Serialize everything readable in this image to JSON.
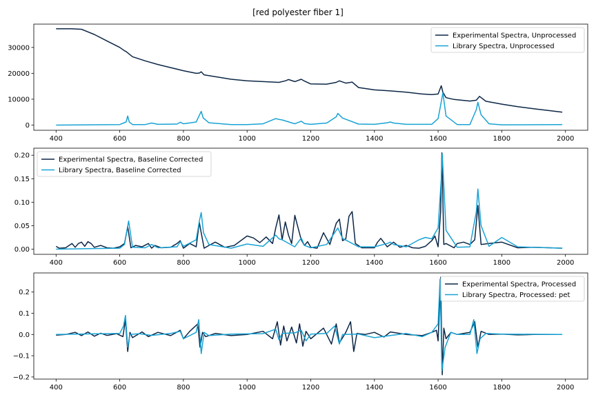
{
  "figure_title": "[red polyester fiber 1]",
  "colors": {
    "experimental": "#0b2545",
    "library": "#17a2d4"
  },
  "chart_data": [
    {
      "type": "line",
      "xlim": [
        330,
        2070
      ],
      "ylim": [
        -2000,
        39000
      ],
      "xticks": [
        400,
        600,
        800,
        1000,
        1200,
        1400,
        1600,
        1800,
        2000
      ],
      "yticks": [
        0,
        10000,
        20000,
        30000
      ],
      "ytick_labels": [
        "0",
        "10000",
        "20000",
        "30000"
      ],
      "legend_position": "upper-right",
      "series": [
        {
          "name": "Experimental Spectra, Unprocessed",
          "x": [
            400,
            450,
            480,
            520,
            560,
            600,
            615,
            620,
            640,
            680,
            720,
            760,
            800,
            840,
            850,
            856,
            865,
            900,
            950,
            1000,
            1050,
            1100,
            1120,
            1130,
            1150,
            1170,
            1180,
            1200,
            1250,
            1280,
            1290,
            1310,
            1330,
            1350,
            1400,
            1450,
            1500,
            1550,
            1580,
            1600,
            1610,
            1615,
            1625,
            1650,
            1700,
            1720,
            1730,
            1750,
            1800,
            1850,
            1900,
            1950,
            1990
          ],
          "y": [
            37200,
            37200,
            37000,
            35000,
            32500,
            30000,
            28700,
            28400,
            26400,
            24800,
            23400,
            22200,
            21000,
            20000,
            20100,
            20600,
            19400,
            18700,
            17700,
            17100,
            16800,
            16500,
            17100,
            17600,
            16800,
            17700,
            17000,
            15900,
            15800,
            16500,
            17100,
            16200,
            16600,
            14500,
            13600,
            13200,
            12700,
            12000,
            11800,
            12000,
            15200,
            12700,
            10600,
            9900,
            9300,
            9600,
            11100,
            9200,
            8100,
            7100,
            6300,
            5600,
            5000
          ]
        },
        {
          "name": "Library Spectra, Unprocessed",
          "x": [
            400,
            600,
            620,
            625,
            630,
            640,
            680,
            700,
            720,
            780,
            790,
            800,
            840,
            850,
            856,
            862,
            880,
            950,
            1000,
            1050,
            1090,
            1100,
            1110,
            1150,
            1170,
            1180,
            1200,
            1250,
            1280,
            1285,
            1300,
            1350,
            1400,
            1440,
            1450,
            1460,
            1500,
            1580,
            1600,
            1610,
            1615,
            1625,
            1660,
            1700,
            1720,
            1725,
            1735,
            1760,
            1800,
            1990
          ],
          "y": [
            0,
            200,
            1200,
            3500,
            1200,
            200,
            200,
            800,
            300,
            400,
            1100,
            500,
            1200,
            3800,
            5300,
            2800,
            900,
            200,
            200,
            500,
            2500,
            2200,
            2000,
            500,
            1500,
            600,
            300,
            800,
            3200,
            4500,
            2700,
            400,
            300,
            900,
            1200,
            800,
            300,
            300,
            2500,
            9000,
            12500,
            3500,
            200,
            200,
            6000,
            8800,
            4000,
            500,
            100,
            200
          ]
        }
      ]
    },
    {
      "type": "line",
      "xlim": [
        330,
        2070
      ],
      "ylim": [
        -0.011,
        0.215
      ],
      "xticks": [
        400,
        600,
        800,
        1000,
        1200,
        1400,
        1600,
        1800,
        2000
      ],
      "yticks": [
        0.0,
        0.05,
        0.1,
        0.15,
        0.2
      ],
      "ytick_labels": [
        "0.00",
        "0.05",
        "0.10",
        "0.15",
        "0.20"
      ],
      "legend_position": "upper-left",
      "series": [
        {
          "name": "Experimental Spectra, Baseline Corrected",
          "x": [
            400,
            410,
            430,
            450,
            460,
            470,
            480,
            490,
            500,
            510,
            520,
            540,
            560,
            580,
            600,
            615,
            625,
            635,
            650,
            670,
            690,
            700,
            710,
            730,
            760,
            780,
            790,
            800,
            820,
            840,
            850,
            856,
            865,
            880,
            900,
            930,
            960,
            1000,
            1020,
            1040,
            1060,
            1080,
            1090,
            1100,
            1110,
            1120,
            1130,
            1140,
            1150,
            1160,
            1170,
            1180,
            1190,
            1200,
            1220,
            1240,
            1260,
            1280,
            1290,
            1300,
            1310,
            1320,
            1330,
            1340,
            1360,
            1400,
            1410,
            1420,
            1440,
            1460,
            1480,
            1500,
            1520,
            1540,
            1560,
            1580,
            1590,
            1600,
            1608,
            1612,
            1618,
            1625,
            1650,
            1660,
            1680,
            1700,
            1715,
            1725,
            1735,
            1760,
            1800,
            1850,
            1900,
            1950,
            1990
          ],
          "y": [
            0.006,
            0.002,
            0.003,
            0.012,
            0.004,
            0.012,
            0.015,
            0.006,
            0.016,
            0.012,
            0.004,
            0.008,
            0.003,
            0.002,
            0.005,
            0.012,
            0.048,
            0.003,
            0.008,
            0.005,
            0.012,
            0.002,
            0.008,
            0.003,
            0.004,
            0.012,
            0.018,
            0.002,
            0.012,
            0.005,
            0.057,
            0.035,
            0.002,
            0.008,
            0.015,
            0.004,
            0.008,
            0.028,
            0.024,
            0.014,
            0.026,
            0.012,
            0.045,
            0.073,
            0.02,
            0.058,
            0.03,
            0.012,
            0.072,
            0.046,
            0.02,
            0.008,
            0.016,
            0.004,
            0.002,
            0.035,
            0.01,
            0.055,
            0.064,
            0.018,
            0.022,
            0.07,
            0.08,
            0.012,
            0.003,
            0.003,
            0.015,
            0.023,
            0.005,
            0.015,
            0.004,
            0.008,
            0.003,
            0.002,
            0.006,
            0.018,
            0.028,
            0.005,
            0.08,
            0.205,
            0.01,
            0.012,
            0.003,
            0.012,
            0.015,
            0.01,
            0.02,
            0.093,
            0.01,
            0.012,
            0.015,
            0.003,
            0.004,
            0.003,
            0.002
          ]
        },
        {
          "name": "Library Spectra, Baseline Corrected",
          "x": [
            400,
            600,
            615,
            620,
            628,
            640,
            680,
            700,
            720,
            780,
            790,
            800,
            840,
            850,
            856,
            863,
            880,
            950,
            1000,
            1050,
            1090,
            1100,
            1110,
            1150,
            1170,
            1180,
            1200,
            1250,
            1280,
            1285,
            1300,
            1350,
            1400,
            1440,
            1450,
            1460,
            1500,
            1540,
            1560,
            1580,
            1600,
            1610,
            1613,
            1625,
            1660,
            1700,
            1720,
            1725,
            1735,
            1760,
            1800,
            1850,
            1990
          ],
          "y": [
            0.0,
            0.002,
            0.01,
            0.03,
            0.06,
            0.004,
            0.003,
            0.01,
            0.003,
            0.005,
            0.016,
            0.006,
            0.02,
            0.06,
            0.078,
            0.035,
            0.01,
            0.002,
            0.011,
            0.006,
            0.03,
            0.022,
            0.02,
            0.005,
            0.024,
            0.008,
            0.003,
            0.01,
            0.04,
            0.045,
            0.023,
            0.005,
            0.005,
            0.012,
            0.015,
            0.01,
            0.005,
            0.02,
            0.025,
            0.022,
            0.045,
            0.15,
            0.203,
            0.04,
            0.004,
            0.005,
            0.08,
            0.128,
            0.05,
            0.006,
            0.025,
            0.005,
            0.002
          ]
        }
      ]
    },
    {
      "type": "line",
      "xlim": [
        330,
        2070
      ],
      "ylim": [
        -0.21,
        0.29
      ],
      "xticks": [
        400,
        600,
        800,
        1000,
        1200,
        1400,
        1600,
        1800,
        2000
      ],
      "yticks": [
        -0.2,
        -0.1,
        0.0,
        0.1,
        0.2
      ],
      "ytick_labels": [
        "−0.2",
        "−0.1",
        "0.0",
        "0.1",
        "0.2"
      ],
      "legend_position": "upper-right",
      "series": [
        {
          "name": "Experimental Spectra, Processed",
          "x": [
            400,
            430,
            460,
            480,
            500,
            520,
            540,
            560,
            590,
            610,
            618,
            625,
            632,
            640,
            670,
            690,
            720,
            760,
            790,
            800,
            820,
            845,
            852,
            860,
            870,
            900,
            950,
            1000,
            1050,
            1080,
            1095,
            1105,
            1115,
            1125,
            1140,
            1155,
            1165,
            1175,
            1185,
            1200,
            1240,
            1265,
            1280,
            1290,
            1310,
            1325,
            1335,
            1345,
            1370,
            1400,
            1430,
            1450,
            1500,
            1550,
            1580,
            1595,
            1600,
            1608,
            1613,
            1618,
            1625,
            1640,
            1660,
            1700,
            1715,
            1725,
            1735,
            1760,
            1800,
            1850,
            1900,
            1950,
            1990
          ],
          "y": [
            -0.003,
            0.0,
            0.01,
            -0.005,
            0.012,
            -0.008,
            0.006,
            -0.004,
            0.004,
            -0.01,
            0.07,
            -0.08,
            0.01,
            -0.015,
            0.012,
            -0.01,
            0.01,
            -0.005,
            0.02,
            -0.02,
            0.015,
            0.05,
            -0.06,
            0.01,
            -0.01,
            0.005,
            -0.005,
            0.0,
            0.015,
            -0.02,
            0.06,
            -0.05,
            0.04,
            -0.03,
            0.035,
            -0.04,
            0.05,
            -0.055,
            0.015,
            -0.02,
            0.03,
            -0.045,
            0.05,
            -0.04,
            0.01,
            0.06,
            -0.08,
            0.005,
            0.0,
            0.01,
            -0.012,
            0.012,
            0.0,
            -0.005,
            0.01,
            0.02,
            -0.03,
            0.27,
            -0.19,
            0.03,
            -0.02,
            0.01,
            0.0,
            0.01,
            0.06,
            -0.06,
            0.015,
            0.0,
            0.002,
            -0.002,
            0.0,
            0.0,
            0.0
          ]
        },
        {
          "name": "Library Spectra, Processed: pet",
          "x": [
            400,
            600,
            612,
            618,
            625,
            632,
            660,
            700,
            760,
            790,
            800,
            840,
            848,
            856,
            865,
            880,
            950,
            1000,
            1050,
            1090,
            1100,
            1110,
            1150,
            1170,
            1185,
            1200,
            1250,
            1275,
            1290,
            1300,
            1350,
            1400,
            1500,
            1550,
            1580,
            1600,
            1606,
            1612,
            1622,
            1640,
            1660,
            1700,
            1712,
            1722,
            1732,
            1750,
            1800,
            1990
          ],
          "y": [
            0.0,
            0.005,
            0.04,
            0.09,
            -0.06,
            0.0,
            0.004,
            -0.004,
            0.005,
            0.015,
            -0.02,
            0.01,
            0.07,
            -0.09,
            0.01,
            -0.005,
            0.002,
            0.003,
            0.004,
            0.025,
            -0.025,
            0.005,
            0.008,
            0.02,
            -0.03,
            0.002,
            0.005,
            0.04,
            -0.045,
            0.0,
            0.002,
            -0.015,
            0.005,
            -0.01,
            0.01,
            0.05,
            0.26,
            -0.17,
            -0.06,
            0.01,
            0.0,
            0.0,
            0.07,
            -0.09,
            -0.02,
            0.005,
            0.002,
            0.0
          ]
        }
      ]
    }
  ]
}
